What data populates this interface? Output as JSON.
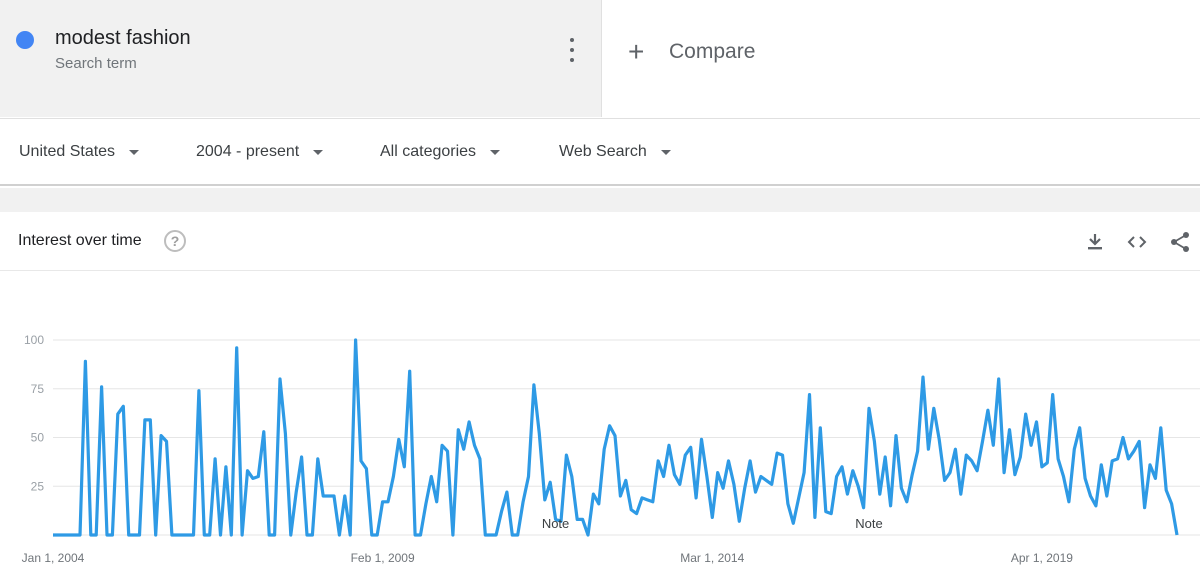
{
  "search_term": {
    "name": "modest fashion",
    "subtitle": "Search term",
    "dot_color": "#4285f4",
    "menu_icon": "more-vert-icon"
  },
  "compare": {
    "icon": "plus-icon",
    "label": "Compare"
  },
  "filters": [
    {
      "label": "United States",
      "icon": "dropdown-caret-icon"
    },
    {
      "label": "2004 - present",
      "icon": "dropdown-caret-icon"
    },
    {
      "label": "All categories",
      "icon": "dropdown-caret-icon"
    },
    {
      "label": "Web Search",
      "icon": "dropdown-caret-icon"
    }
  ],
  "interest_over_time": {
    "title": "Interest over time",
    "help_icon": "help-circle-icon",
    "help_glyph": "?",
    "actions": [
      "download-icon",
      "embed-code-icon",
      "share-icon"
    ]
  },
  "chart_data": {
    "type": "line",
    "title": "",
    "xlabel": "",
    "ylabel": "",
    "ylim": [
      0,
      100
    ],
    "yticks": [
      25,
      50,
      75,
      100
    ],
    "grid": true,
    "line_color": "#2e9ae5",
    "x_tick_labels": [
      {
        "label": "Jan 1, 2004",
        "index": 0
      },
      {
        "label": "Feb 1, 2009",
        "index": 61
      },
      {
        "label": "Mar 1, 2014",
        "index": 122
      },
      {
        "label": "Apr 1, 2019",
        "index": 183
      }
    ],
    "notes": [
      {
        "label": "Note",
        "index": 93
      },
      {
        "label": "Note",
        "index": 151
      }
    ],
    "series": [
      {
        "values": [
          0,
          0,
          0,
          0,
          0,
          0,
          89,
          0,
          0,
          76,
          0,
          0,
          62,
          66,
          0,
          0,
          0,
          59,
          59,
          0,
          51,
          48,
          0,
          0,
          0,
          0,
          0,
          74,
          0,
          0,
          39,
          0,
          35,
          0,
          96,
          0,
          33,
          29,
          30,
          53,
          0,
          0,
          80,
          52,
          0,
          22,
          40,
          0,
          0,
          39,
          20,
          20,
          20,
          0,
          20,
          0,
          100,
          38,
          34,
          0,
          0,
          17,
          17,
          30,
          49,
          35,
          84,
          0,
          0,
          16,
          30,
          17,
          46,
          43,
          0,
          54,
          44,
          58,
          46,
          39,
          0,
          0,
          0,
          12,
          22,
          0,
          0,
          17,
          30,
          77,
          52,
          18,
          27,
          8,
          7,
          41,
          30,
          8,
          8,
          0,
          21,
          16,
          44,
          56,
          51,
          20,
          28,
          13,
          11,
          19,
          18,
          17,
          38,
          30,
          46,
          31,
          26,
          41,
          45,
          19,
          49,
          30,
          9,
          32,
          24,
          38,
          26,
          7,
          24,
          38,
          22,
          30,
          28,
          26,
          42,
          41,
          16,
          6,
          19,
          32,
          72,
          9,
          55,
          12,
          11,
          30,
          35,
          21,
          33,
          25,
          14,
          65,
          48,
          21,
          40,
          15,
          51,
          24,
          17,
          31,
          43,
          81,
          44,
          65,
          49,
          28,
          32,
          44,
          21,
          41,
          38,
          33,
          48,
          64,
          46,
          80,
          32,
          54,
          31,
          40,
          62,
          46,
          58,
          35,
          37,
          72,
          39,
          30,
          17,
          44,
          55,
          29,
          20,
          15,
          36,
          20,
          38,
          39,
          50,
          39,
          43,
          48,
          14,
          36,
          29,
          55,
          23,
          16,
          0
        ]
      }
    ]
  }
}
